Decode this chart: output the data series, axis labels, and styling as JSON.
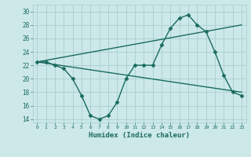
{
  "xlabel": "Humidex (Indice chaleur)",
  "bg_color": "#cce8e8",
  "grid_color": "#aacfcf",
  "line_color": "#1a6b60",
  "xlim": [
    -0.5,
    23.5
  ],
  "ylim": [
    13.5,
    31
  ],
  "xticks": [
    0,
    1,
    2,
    3,
    4,
    5,
    6,
    7,
    8,
    9,
    10,
    11,
    12,
    13,
    14,
    15,
    16,
    17,
    18,
    19,
    20,
    21,
    22,
    23
  ],
  "yticks": [
    14,
    16,
    18,
    20,
    22,
    24,
    26,
    28,
    30
  ],
  "line1_x": [
    0,
    1,
    2,
    3,
    4,
    5,
    6,
    7,
    8,
    9,
    10,
    11,
    12,
    13,
    14,
    15,
    16,
    17,
    18,
    19,
    20,
    21,
    22,
    23
  ],
  "line1_y": [
    22.5,
    22.5,
    22.0,
    21.5,
    20.0,
    17.5,
    14.5,
    14.0,
    14.5,
    16.5,
    20.0,
    22.0,
    22.0,
    22.0,
    25.0,
    27.5,
    29.0,
    29.5,
    28.0,
    27.0,
    24.0,
    20.5,
    18.0,
    17.5
  ],
  "line2_x": [
    0,
    23
  ],
  "line2_y": [
    22.5,
    28.0
  ],
  "line3_x": [
    0,
    23
  ],
  "line3_y": [
    22.5,
    18.0
  ],
  "marker": "D",
  "marker_size": 2.5,
  "linewidth": 1.0
}
